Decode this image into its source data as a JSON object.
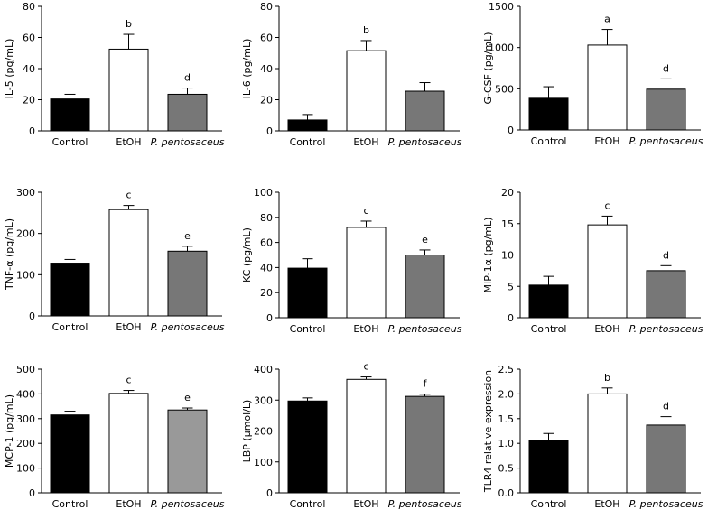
{
  "chart_data": [
    {
      "id": "il5",
      "type": "bar",
      "ylabel": "IL-5 (pg/mL)",
      "ylim": [
        0,
        80
      ],
      "yticks": [
        0,
        20,
        40,
        60,
        80
      ],
      "ytick_labels": [
        "0",
        "20",
        "40",
        "60",
        "80"
      ],
      "categories": [
        "Control",
        "EtOH",
        "P. pentosaceus"
      ],
      "values": [
        20.5,
        52.5,
        23.5
      ],
      "errors": [
        3,
        9.5,
        4
      ],
      "letters": [
        "",
        "b",
        "d"
      ],
      "colors": [
        "#000000",
        "#ffffff",
        "#777777"
      ]
    },
    {
      "id": "il6",
      "type": "bar",
      "ylabel": "IL-6 (pg/mL)",
      "ylim": [
        0,
        80
      ],
      "yticks": [
        0,
        20,
        40,
        60,
        80
      ],
      "ytick_labels": [
        "0",
        "20",
        "40",
        "60",
        "80"
      ],
      "categories": [
        "Control",
        "EtOH",
        "P. pentosaceus"
      ],
      "values": [
        7,
        51.5,
        25.5
      ],
      "errors": [
        3.5,
        6.5,
        5.5
      ],
      "letters": [
        "",
        "b",
        ""
      ],
      "colors": [
        "#000000",
        "#ffffff",
        "#777777"
      ]
    },
    {
      "id": "gcsf",
      "type": "bar",
      "ylabel": "G-CSF (pg/mL)",
      "ylim": [
        0,
        1500
      ],
      "yticks": [
        0,
        500,
        1000,
        1500
      ],
      "ytick_labels": [
        "0",
        "500",
        "1000",
        "1500"
      ],
      "categories": [
        "Control",
        "EtOH",
        "P. pentosaceus"
      ],
      "values": [
        385,
        1030,
        495
      ],
      "errors": [
        140,
        190,
        125
      ],
      "letters": [
        "",
        "a",
        "d"
      ],
      "colors": [
        "#000000",
        "#ffffff",
        "#777777"
      ]
    },
    {
      "id": "tnfa",
      "type": "bar",
      "ylabel": "TNF-α (pg/mL)",
      "ylim": [
        0,
        300
      ],
      "yticks": [
        0,
        100,
        200,
        300
      ],
      "ytick_labels": [
        "0",
        "100",
        "200",
        "300"
      ],
      "categories": [
        "Control",
        "EtOH",
        "P. pentosaceus"
      ],
      "values": [
        128,
        258,
        157
      ],
      "errors": [
        9,
        10,
        12
      ],
      "letters": [
        "",
        "c",
        "e"
      ],
      "colors": [
        "#000000",
        "#ffffff",
        "#777777"
      ]
    },
    {
      "id": "kc",
      "type": "bar",
      "ylabel": "KC (pg/mL)",
      "ylim": [
        0,
        100
      ],
      "yticks": [
        0,
        20,
        40,
        60,
        80,
        100
      ],
      "ytick_labels": [
        "0",
        "20",
        "40",
        "60",
        "80",
        "100"
      ],
      "categories": [
        "Control",
        "EtOH",
        "P. pentosaceus"
      ],
      "values": [
        39.5,
        72,
        50
      ],
      "errors": [
        7.5,
        5,
        4
      ],
      "letters": [
        "",
        "c",
        "e"
      ],
      "colors": [
        "#000000",
        "#ffffff",
        "#777777"
      ]
    },
    {
      "id": "mip1a",
      "type": "bar",
      "ylabel": "MIP-1α (pg/mL)",
      "ylim": [
        0,
        20
      ],
      "yticks": [
        0,
        5,
        10,
        15,
        20
      ],
      "ytick_labels": [
        "0",
        "5",
        "10",
        "15",
        "20"
      ],
      "categories": [
        "Control",
        "EtOH",
        "P. pentosaceus"
      ],
      "values": [
        5.2,
        14.8,
        7.5
      ],
      "errors": [
        1.4,
        1.4,
        0.8
      ],
      "letters": [
        "",
        "c",
        "d"
      ],
      "colors": [
        "#000000",
        "#ffffff",
        "#777777"
      ]
    },
    {
      "id": "mcp1",
      "type": "bar",
      "ylabel": "MCP-1 (pg/mL)",
      "ylim": [
        0,
        500
      ],
      "yticks": [
        0,
        100,
        200,
        300,
        400,
        500
      ],
      "ytick_labels": [
        "0",
        "100",
        "200",
        "300",
        "400",
        "500"
      ],
      "categories": [
        "Control",
        "EtOH",
        "P. pentosaceus"
      ],
      "values": [
        315,
        402,
        335
      ],
      "errors": [
        15,
        12,
        8
      ],
      "letters": [
        "",
        "c",
        "e"
      ],
      "colors": [
        "#000000",
        "#ffffff",
        "#999999"
      ]
    },
    {
      "id": "lbp",
      "type": "bar",
      "ylabel": "LBP (μmol/L)",
      "ylim": [
        0,
        400
      ],
      "yticks": [
        0,
        100,
        200,
        300,
        400
      ],
      "ytick_labels": [
        "0",
        "100",
        "200",
        "300",
        "400"
      ],
      "categories": [
        "Control",
        "EtOH",
        "P. pentosaceus"
      ],
      "values": [
        297,
        367,
        312
      ],
      "errors": [
        10,
        8,
        7
      ],
      "letters": [
        "",
        "c",
        "f"
      ],
      "colors": [
        "#000000",
        "#ffffff",
        "#777777"
      ]
    },
    {
      "id": "tlr4",
      "type": "bar",
      "ylabel": "TLR4 relative expression",
      "ylim": [
        0,
        2.5
      ],
      "yticks": [
        0,
        0.5,
        1,
        1.5,
        2,
        2.5
      ],
      "ytick_labels": [
        "0.0",
        "0.5",
        "1.0",
        "1.5",
        "2.0",
        "2.5"
      ],
      "categories": [
        "Control",
        "EtOH",
        "P. pentosaceus"
      ],
      "values": [
        1.05,
        2.0,
        1.37
      ],
      "errors": [
        0.15,
        0.12,
        0.17
      ],
      "letters": [
        "",
        "b",
        "d"
      ],
      "colors": [
        "#000000",
        "#ffffff",
        "#777777"
      ]
    }
  ]
}
